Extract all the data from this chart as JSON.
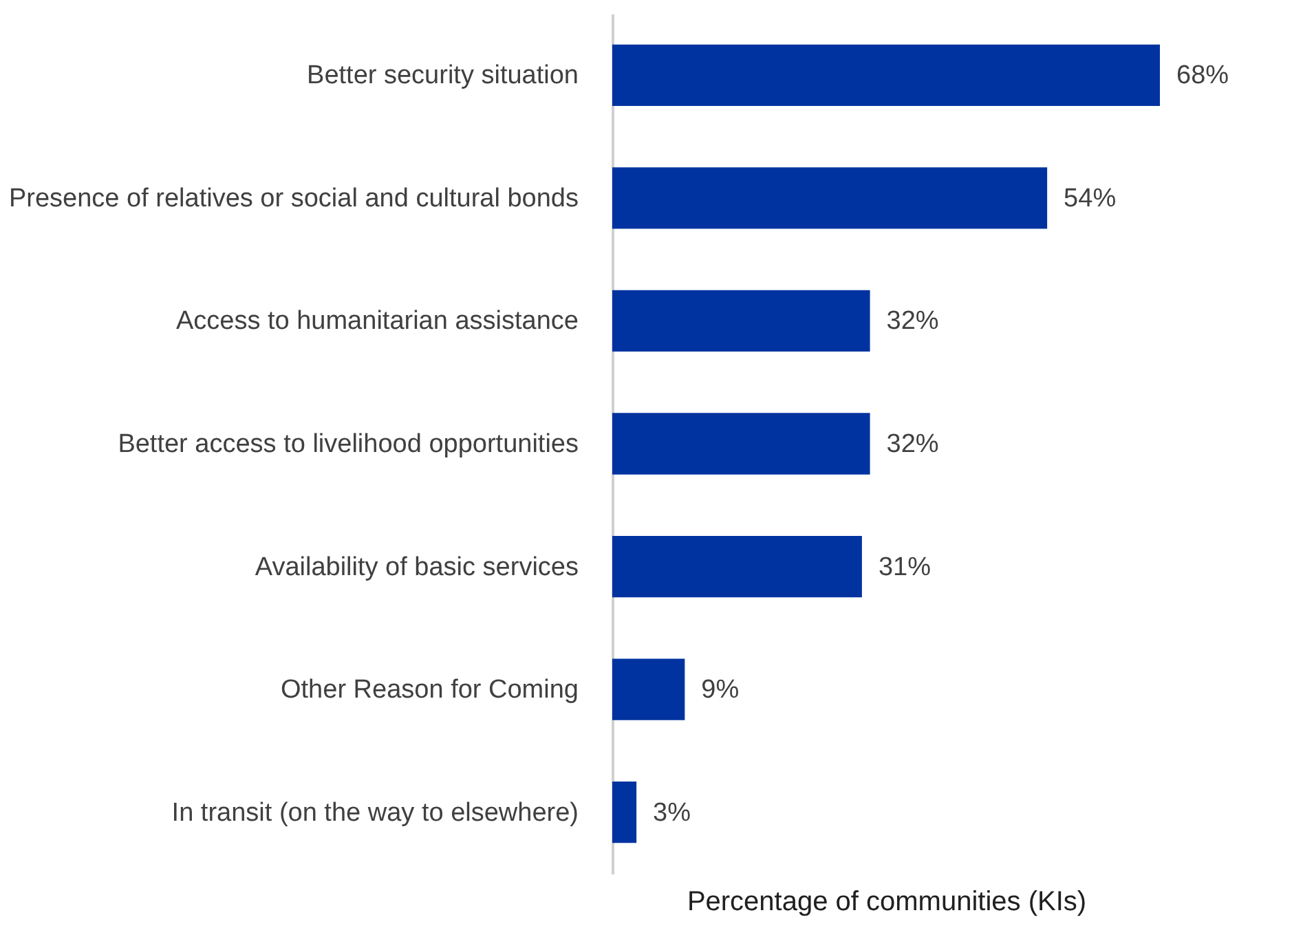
{
  "chart_data": {
    "type": "bar",
    "orientation": "horizontal",
    "xlabel": "Percentage of communities (KIs)",
    "categories": [
      "Better security situation",
      "Presence of relatives or social and cultural bonds",
      "Access to humanitarian assistance",
      "Better access to livelihood opportunities",
      "Availability of basic services",
      "Other Reason for Coming",
      "In transit (on the way to elsewhere)"
    ],
    "values": [
      68,
      54,
      32,
      32,
      31,
      9,
      3
    ],
    "value_labels": [
      "68%",
      "54%",
      "32%",
      "32%",
      "31%",
      "9%",
      "3%"
    ],
    "color": "#0033a0",
    "grid": false
  }
}
